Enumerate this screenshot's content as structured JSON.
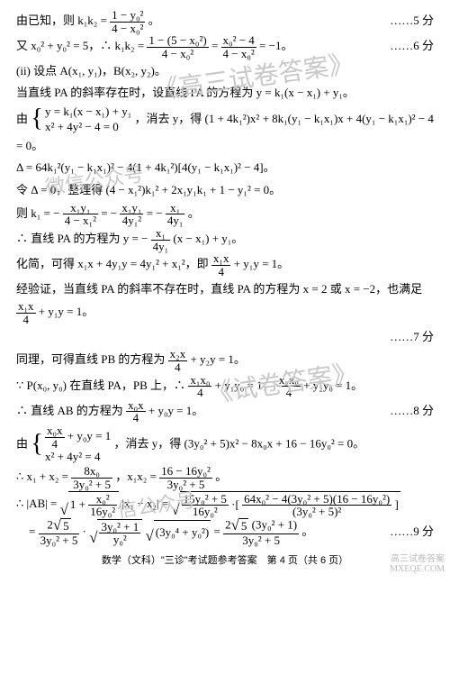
{
  "watermarks": {
    "w1": "《高三试卷答案》",
    "w2": "微信公众号",
    "w3": "《试卷答案》",
    "w4": "信公众号"
  },
  "lines": {
    "l1_pre": "由已知，则 k₁k₂ = ",
    "l1_num": "1 − y₀²",
    "l1_den": "4 − x₀²",
    "l1_post": "。",
    "s1": "……5 分",
    "l2_pre": "又 x₀² + y₀² = 5，∴ k₁k₂ = ",
    "l2a_num": "1 − (5 − x₀²)",
    "l2a_den": "4 − x₀²",
    "l2_mid": " = ",
    "l2b_num": "x₀² − 4",
    "l2b_den": "4 − x₀²",
    "l2_post": " = −1。",
    "s2": "……6 分",
    "l3": "(ii) 设点 A(x₁, y₁)，B(x₂, y₂)。",
    "l4": "当直线 PA 的斜率存在时，设直线 PA 的方程为 y = k₁(x − x₁) + y₁。",
    "l5_pre": "由 ",
    "l5_sys1": "y = k₁(x − x₁) + y₁",
    "l5_sys2": "x² + 4y² − 4 = 0",
    "l5_post": "，消去 y，得 (1 + 4k₁²)x² + 8k₁(y₁ − k₁x₁)x + 4(y₁ − k₁x₁)² − 4 = 0。",
    "l6": "Δ = 64k₁²(y₁ − k₁x₁)² − 4(1 + 4k₁²)[4(y₁ − k₁x₁)² − 4]。",
    "l7": "令 Δ = 0，整理得 (4 − x₁²)k₁² + 2x₁y₁k₁ + 1 − y₁² = 0。",
    "l8_pre": "则 k₁ = − ",
    "l8a_num": "x₁y₁",
    "l8a_den": "4 − x₁²",
    "l8_mid1": " = − ",
    "l8b_num": "x₁y₁",
    "l8b_den": "4y₁²",
    "l8_mid2": " = − ",
    "l8c_num": "x₁",
    "l8c_den": "4y₁",
    "l8_post": "。",
    "l9_pre": "∴ 直线 PA 的方程为 y = − ",
    "l9_num": "x₁",
    "l9_den": "4y₁",
    "l9_post": "(x − x₁) + y₁。",
    "l10_pre": "化简，可得 x₁x + 4y₁y = 4y₁² + x₁²，即 ",
    "l10_num": "x₁x",
    "l10_den": "4",
    "l10_post": " + y₁y = 1。",
    "l11_pre": "经验证，当直线 PA 的斜率不存在时，直线 PA 的方程为 x = 2 或 x = −2，也满足 ",
    "l11_num": "x₁x",
    "l11_den": "4",
    "l11_post": " + y₁y = 1。",
    "s3": "……7 分",
    "l12_pre": "同理，可得直线 PB 的方程为 ",
    "l12_num": "x₂x",
    "l12_den": "4",
    "l12_post": " + y₂y = 1。",
    "l13_pre": "∵ P(x₀, y₀) 在直线 PA，PB 上，∴ ",
    "l13a_num": "x₁x₀",
    "l13a_den": "4",
    "l13_mid": " + y₁y₀ = 1，",
    "l13b_num": "x₂x₀",
    "l13b_den": "4",
    "l13_post": " + y₂y₀ = 1。",
    "l14_pre": "∴ 直线 AB 的方程为 ",
    "l14_num": "x₀x",
    "l14_den": "4",
    "l14_post": " + y₀y = 1。",
    "s4": "……8 分",
    "l15_pre": "由 ",
    "l15_sys1a_num": "x₀x",
    "l15_sys1a_den": "4",
    "l15_sys1a_post": " + y₀y = 1",
    "l15_sys2": "x² + 4y² = 4",
    "l15_post": "，消去 y，得 (3y₀² + 5)x² − 8x₀x + 16 − 16y₀² = 0。",
    "l16_pre": "∴ x₁ + x₂ = ",
    "l16a_num": "8x₀",
    "l16a_den": "3y₀² + 5",
    "l16_mid": "，x₁x₂ = ",
    "l16b_num": "16 − 16y₀²",
    "l16b_den": "3y₀² + 5",
    "l16_post": "。",
    "l17_pre": "∴ |AB| = ",
    "l17a_in_pre": "1 + ",
    "l17a_num": "x₀²",
    "l17a_den": "16y₀²",
    "l17_mid1": " |x₁ − x₂| = ",
    "l17b_in_pre": "",
    "l17b_num": "15y₀² + 5",
    "l17b_den": "16y₀²",
    "l17b_bracket_num": "64x₀² − 4(3y₀² + 5)(16 − 16y₀²)",
    "l17b_bracket_den": "(3y₀² + 5)²",
    "l18_eq": " = ",
    "l18a_num_pre": "2",
    "l18a_num_sqrt": "5",
    "l18a_den": "3y₀² + 5",
    "l18_mid_dot": "·",
    "l18b_num": "3y₀² + 1",
    "l18b_den": "y₀²",
    "l18b_sqrt_in": "(3y₀⁴ + y₀²)",
    "l18_mid2": " = ",
    "l18c_num_pre": "2",
    "l18c_num_sqrt": "5",
    "l18c_num_post": " (3y₀² + 1)",
    "l18c_den": "3y₀² + 5",
    "l18_post": "。",
    "s5": "……9 分"
  },
  "footer": "数学（文科）\"三诊\"考试题参考答案　第 4 页（共 6 页）",
  "corner1": "高三试卷答案",
  "corner2": "MXEQE.COM"
}
